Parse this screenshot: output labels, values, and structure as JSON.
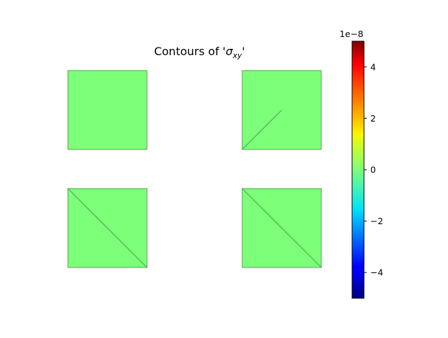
{
  "chart_data": {
    "type": "heatmap",
    "title_prefix": "Contours of '",
    "title_symbol": "σ",
    "title_subscript": "xy",
    "title_suffix": "'",
    "colormap": "jet",
    "fill_value": 0,
    "fill_color": "#7dff7a",
    "edge_color": "#3a8f38",
    "panels": [
      {
        "panel": 1,
        "diagonal": "none"
      },
      {
        "panel": 2,
        "diagonal": "partial"
      },
      {
        "panel": 3,
        "diagonal": "full"
      },
      {
        "panel": 4,
        "diagonal": "full"
      }
    ],
    "colorbar": {
      "min": -5e-08,
      "max": 5e-08,
      "offset_label": "1e−8",
      "ticks": [
        {
          "value": 4,
          "label": "4"
        },
        {
          "value": 2,
          "label": "2"
        },
        {
          "value": 0,
          "label": "0"
        },
        {
          "value": -2,
          "label": "−2"
        },
        {
          "value": -4,
          "label": "−4"
        }
      ],
      "tick_range": [
        -5,
        5
      ]
    }
  }
}
